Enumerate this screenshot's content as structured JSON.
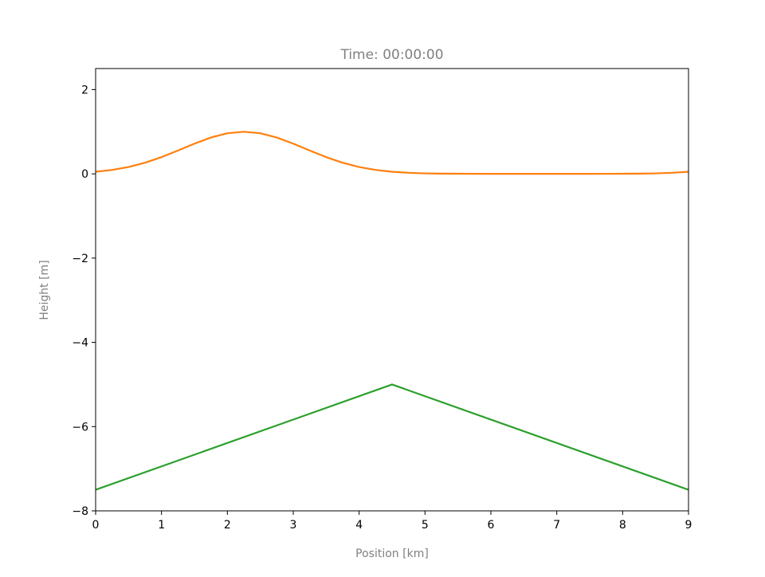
{
  "chart_data": {
    "type": "line",
    "title": "Time: 00:00:00",
    "xlabel": "Position [km]",
    "ylabel": "Height [m]",
    "xlim": [
      0,
      9
    ],
    "ylim": [
      -8,
      2.5
    ],
    "xticks": [
      0,
      1,
      2,
      3,
      4,
      5,
      6,
      7,
      8,
      9
    ],
    "yticks": [
      2,
      0,
      -2,
      -4,
      -6,
      -8
    ],
    "ytick_labels": [
      "2",
      "0",
      "−2",
      "−4",
      "−6",
      "−8"
    ],
    "grid": false,
    "label_color": "#808080",
    "series": [
      {
        "color": "#ff7f0e",
        "x": [
          0,
          0.25,
          0.5,
          0.75,
          1,
          1.25,
          1.5,
          1.75,
          2,
          2.25,
          2.5,
          2.75,
          3,
          3.25,
          3.5,
          3.75,
          4,
          4.25,
          4.5,
          4.75,
          5,
          5.25,
          5.5,
          6,
          6.5,
          7,
          7.5,
          8,
          8.25,
          8.5,
          8.75,
          9
        ],
        "y": [
          0.05,
          0.094,
          0.163,
          0.264,
          0.397,
          0.553,
          0.717,
          0.862,
          0.964,
          1.0,
          0.964,
          0.862,
          0.717,
          0.553,
          0.397,
          0.264,
          0.163,
          0.094,
          0.05,
          0.025,
          0.011,
          0.005,
          0.002,
          0.0,
          0.0,
          0.0,
          0.0,
          0.002,
          0.005,
          0.011,
          0.025,
          0.05
        ]
      },
      {
        "color": "#2ca02c",
        "x": [
          0,
          4.5,
          9
        ],
        "y": [
          -7.5,
          -5,
          -7.5
        ]
      }
    ]
  }
}
